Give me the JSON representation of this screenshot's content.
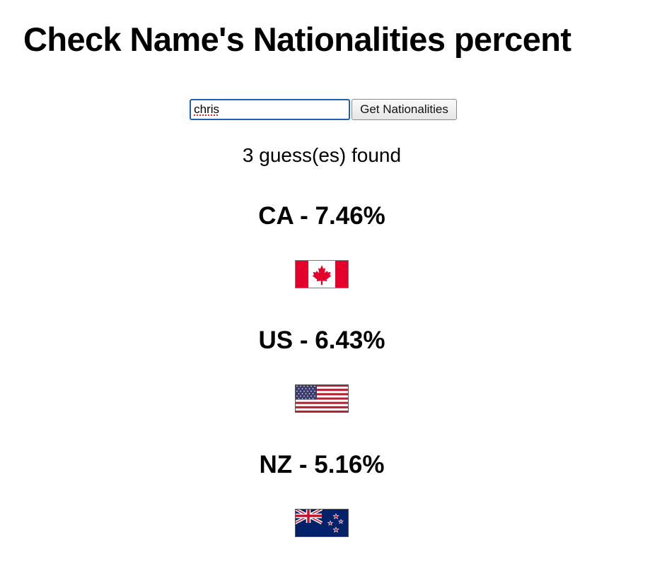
{
  "page": {
    "title": "Check Name's Nationalities percent"
  },
  "form": {
    "name_value": "chris",
    "button_label": "Get Nationalities"
  },
  "summary": {
    "count_text": "3 guess(es) found"
  },
  "results": [
    {
      "label": "CA - 7.46%",
      "country": "CA",
      "percent": 7.46,
      "flag_icon": "canada-flag-icon"
    },
    {
      "label": "US - 6.43%",
      "country": "US",
      "percent": 6.43,
      "flag_icon": "us-flag-icon"
    },
    {
      "label": "NZ - 5.16%",
      "country": "NZ",
      "percent": 5.16,
      "flag_icon": "new-zealand-flag-icon"
    }
  ],
  "colors": {
    "input_focus_border": "#1f5fb8",
    "canada_red": "#e4002b",
    "us_red": "#b22234",
    "us_blue": "#3c3b6e",
    "nz_blue": "#012169",
    "nz_red": "#c8102e"
  }
}
